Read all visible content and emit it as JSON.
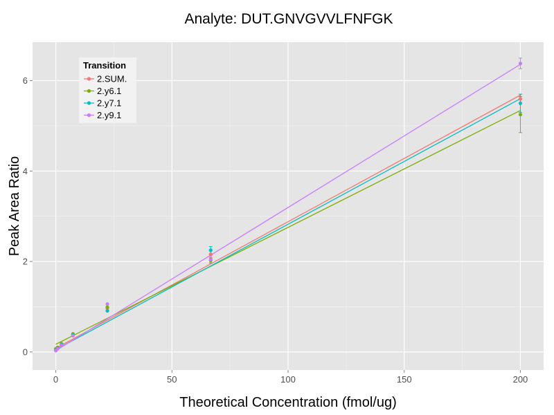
{
  "chart_data": {
    "type": "scatter",
    "title": "Analyte: DUT.GNVGVVLFNFGK",
    "xlabel": "Theoretical Concentration (fmol/ug)",
    "ylabel": "Peak Area Ratio",
    "xlim": [
      -10,
      210
    ],
    "ylim": [
      -0.4,
      6.85
    ],
    "x_ticks": [
      0,
      50,
      100,
      150,
      200
    ],
    "y_ticks": [
      0,
      2,
      4,
      6
    ],
    "grid": true,
    "legend": {
      "title": "Transition",
      "position": "top-left"
    },
    "series": [
      {
        "name": "2.SUM.",
        "color": "#F8766D",
        "fit": {
          "x0": 0,
          "y0": 0.08,
          "x1": 200,
          "y1": 5.68
        },
        "points": [
          {
            "x": 0,
            "y": 0.05,
            "err": 0
          },
          {
            "x": 0.8,
            "y": 0.09,
            "err": 0
          },
          {
            "x": 2.5,
            "y": 0.17,
            "err": 0
          },
          {
            "x": 7.4,
            "y": 0.39,
            "err": 0
          },
          {
            "x": 22.2,
            "y": 0.97,
            "err": 0
          },
          {
            "x": 66.7,
            "y": 2.16,
            "err": 0.08
          },
          {
            "x": 200,
            "y": 5.6,
            "err": 0.1
          }
        ]
      },
      {
        "name": "2.y6.1",
        "color": "#7CAE00",
        "fit": {
          "x0": 0,
          "y0": 0.17,
          "x1": 200,
          "y1": 5.34
        },
        "points": [
          {
            "x": 0,
            "y": 0.07,
            "err": 0
          },
          {
            "x": 0.8,
            "y": 0.1,
            "err": 0
          },
          {
            "x": 2.5,
            "y": 0.18,
            "err": 0
          },
          {
            "x": 7.4,
            "y": 0.4,
            "err": 0
          },
          {
            "x": 22.2,
            "y": 0.99,
            "err": 0
          },
          {
            "x": 66.7,
            "y": 2.02,
            "err": 0.06
          },
          {
            "x": 200,
            "y": 5.25,
            "err": 0.4
          }
        ]
      },
      {
        "name": "2.y7.1",
        "color": "#00BFC4",
        "fit": {
          "x0": 0,
          "y0": 0.05,
          "x1": 200,
          "y1": 5.6
        },
        "points": [
          {
            "x": 0,
            "y": 0.04,
            "err": 0
          },
          {
            "x": 0.8,
            "y": 0.08,
            "err": 0
          },
          {
            "x": 2.5,
            "y": 0.16,
            "err": 0
          },
          {
            "x": 7.4,
            "y": 0.37,
            "err": 0
          },
          {
            "x": 22.2,
            "y": 0.91,
            "err": 0
          },
          {
            "x": 66.7,
            "y": 2.25,
            "err": 0.08
          },
          {
            "x": 200,
            "y": 5.5,
            "err": 0.2
          }
        ]
      },
      {
        "name": "2.y9.1",
        "color": "#C77CFF",
        "fit": {
          "x0": 0,
          "y0": 0.03,
          "x1": 200,
          "y1": 6.36
        },
        "points": [
          {
            "x": 0,
            "y": 0.03,
            "err": 0
          },
          {
            "x": 0.8,
            "y": 0.07,
            "err": 0
          },
          {
            "x": 2.5,
            "y": 0.15,
            "err": 0
          },
          {
            "x": 7.4,
            "y": 0.36,
            "err": 0
          },
          {
            "x": 22.2,
            "y": 1.06,
            "err": 0
          },
          {
            "x": 66.7,
            "y": 2.04,
            "err": 0.07
          },
          {
            "x": 200,
            "y": 6.38,
            "err": 0.12
          }
        ]
      }
    ]
  }
}
